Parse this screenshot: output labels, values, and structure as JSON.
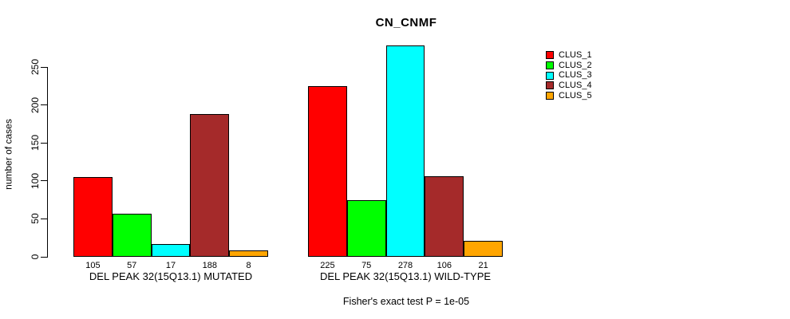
{
  "chart_data": {
    "type": "bar",
    "title": "CN_CNMF",
    "xlabel": "",
    "ylabel": "number of cases",
    "ylim": [
      0,
      250
    ],
    "yticks": [
      0,
      50,
      100,
      150,
      200,
      250
    ],
    "grid": false,
    "legend_position": "top-right",
    "categories": [
      "DEL PEAK 32(15Q13.1) MUTATED",
      "DEL PEAK 32(15Q13.1) WILD-TYPE"
    ],
    "series": [
      {
        "name": "CLUS_1",
        "color": "#ff0000",
        "values": [
          105,
          225
        ]
      },
      {
        "name": "CLUS_2",
        "color": "#00ff00",
        "values": [
          57,
          75
        ]
      },
      {
        "name": "CLUS_3",
        "color": "#00ffff",
        "values": [
          17,
          278
        ]
      },
      {
        "name": "CLUS_4",
        "color": "#a52a2a",
        "values": [
          188,
          106
        ]
      },
      {
        "name": "CLUS_5",
        "color": "#ffa500",
        "values": [
          8,
          21
        ]
      }
    ],
    "bar_value_labels": {
      "DEL PEAK 32(15Q13.1) MUTATED": [
        105,
        57,
        17,
        188,
        8
      ],
      "DEL PEAK 32(15Q13.1) WILD-TYPE": [
        225,
        75,
        278,
        106,
        21
      ]
    },
    "annotation": "Fisher's exact test P = 1e-05"
  }
}
